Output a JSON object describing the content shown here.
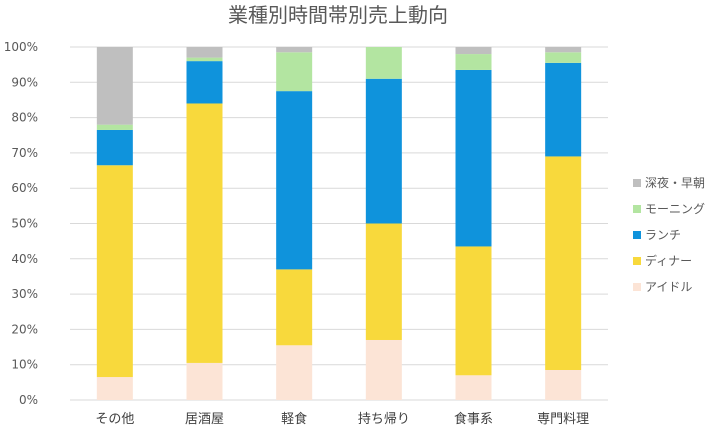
{
  "chart_data": {
    "type": "bar",
    "stacked": "percent",
    "title": "業種別時間帯別売上動向",
    "xlabel": "",
    "ylabel": "",
    "ylim": [
      0,
      100
    ],
    "yticks": [
      "0%",
      "10%",
      "20%",
      "30%",
      "40%",
      "50%",
      "60%",
      "70%",
      "80%",
      "90%",
      "100%"
    ],
    "categories": [
      "その他",
      "居酒屋",
      "軽食",
      "持ち帰り",
      "食事系",
      "専門料理"
    ],
    "series": [
      {
        "name": "アイドル",
        "color": "#fce4d6",
        "values": [
          6.5,
          10.5,
          15.5,
          17.0,
          7.0,
          8.5
        ]
      },
      {
        "name": "ディナー",
        "color": "#f8d93c",
        "values": [
          60.0,
          73.5,
          21.5,
          33.0,
          36.5,
          60.5
        ]
      },
      {
        "name": "ランチ",
        "color": "#0f93dc",
        "values": [
          10.0,
          12.0,
          50.5,
          41.0,
          50.0,
          26.5
        ]
      },
      {
        "name": "モーニング",
        "color": "#b3e5a1",
        "values": [
          1.5,
          1.0,
          11.0,
          9.0,
          4.5,
          3.0
        ]
      },
      {
        "name": "深夜・早朝",
        "color": "#bfbfbf",
        "values": [
          22.0,
          3.0,
          1.5,
          0.0,
          2.0,
          1.5
        ]
      }
    ],
    "legend": {
      "position": "right",
      "order": [
        "深夜・早朝",
        "モーニング",
        "ランチ",
        "ディナー",
        "アイドル"
      ]
    },
    "grid": true
  }
}
